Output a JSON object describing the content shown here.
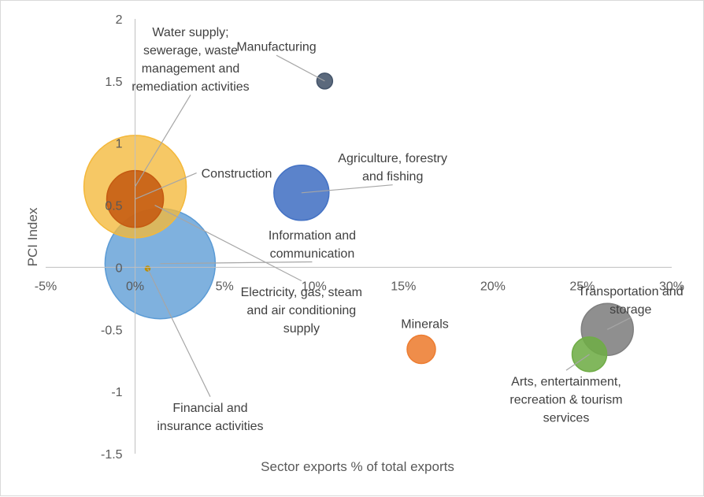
{
  "chart_data": {
    "type": "bubble",
    "xlabel": "Sector exports % of total exports",
    "ylabel": "PCI  Index",
    "xlim": [
      -0.05,
      0.3
    ],
    "ylim": [
      -1.5,
      2
    ],
    "x_ticks": [
      -0.05,
      0,
      0.05,
      0.1,
      0.15,
      0.2,
      0.25,
      0.3
    ],
    "x_tick_labels": [
      "-5%",
      "0%",
      "5%",
      "10%",
      "15%",
      "20%",
      "25%",
      "30%"
    ],
    "y_ticks": [
      -1.5,
      -1,
      -0.5,
      0,
      0.5,
      1,
      1.5,
      2
    ],
    "y_tick_labels": [
      "-1.5",
      "-1",
      "-0.5",
      "0",
      "0.5",
      "1",
      "1.5",
      "2"
    ],
    "grid": false,
    "series": [
      {
        "label_lines": [
          "Manufacturing"
        ],
        "x": 0.106,
        "y": 1.5,
        "size": 10,
        "color": "#44546a",
        "label_anchor": "middle",
        "label_x": 0.079,
        "label_y": 1.78
      },
      {
        "label_lines": [
          "Water supply;",
          "sewerage, waste",
          "management and",
          "remediation activities"
        ],
        "x": 0.0,
        "y": 0.65,
        "size": 65,
        "color": "#f4b83a",
        "label_anchor": "middle",
        "label_x": 0.031,
        "label_y": 1.68
      },
      {
        "label_lines": [
          "Construction"
        ],
        "x": 0.0,
        "y": 0.55,
        "size": 36,
        "color": "#c55a11",
        "label_anchor": "start",
        "label_x": 0.037,
        "label_y": 0.76
      },
      {
        "label_lines": [
          "Agriculture, forestry",
          "and fishing"
        ],
        "x": 0.093,
        "y": 0.6,
        "size": 35,
        "color": "#4472c4",
        "label_anchor": "middle",
        "label_x": 0.144,
        "label_y": 0.81
      },
      {
        "label_lines": [
          "Information and",
          "communication"
        ],
        "x": 0.014,
        "y": 0.03,
        "size": 70,
        "color": "#5b9bd5",
        "label_anchor": "middle",
        "label_x": 0.099,
        "label_y": 0.19
      },
      {
        "label_lines": [
          "Electricity, gas, steam",
          "and air conditioning",
          "supply"
        ],
        "x": 0.011,
        "y": 0.5,
        "size": 0,
        "color": "#7f7f7f",
        "label_anchor": "middle",
        "label_x": 0.093,
        "label_y": -0.34
      },
      {
        "label_lines": [
          "Financial and",
          "insurance activities"
        ],
        "x": 0.007,
        "y": -0.01,
        "size": 3,
        "color": "#bf8f00",
        "label_anchor": "middle",
        "label_x": 0.042,
        "label_y": -1.2
      },
      {
        "label_lines": [
          "Minerals"
        ],
        "x": 0.16,
        "y": -0.66,
        "size": 18,
        "color": "#ed7d31",
        "label_anchor": "middle",
        "label_x": 0.162,
        "label_y": -0.45
      },
      {
        "label_lines": [
          "Transportation and",
          "storage"
        ],
        "x": 0.264,
        "y": -0.5,
        "size": 33,
        "color": "#7f7f7f",
        "label_anchor": "middle",
        "label_x": 0.277,
        "label_y": -0.26
      },
      {
        "label_lines": [
          "Arts, entertainment,",
          "recreation & tourism",
          "services"
        ],
        "x": 0.254,
        "y": -0.7,
        "size": 22,
        "color": "#70ad47",
        "label_anchor": "middle",
        "label_x": 0.241,
        "label_y": -1.06
      }
    ]
  }
}
